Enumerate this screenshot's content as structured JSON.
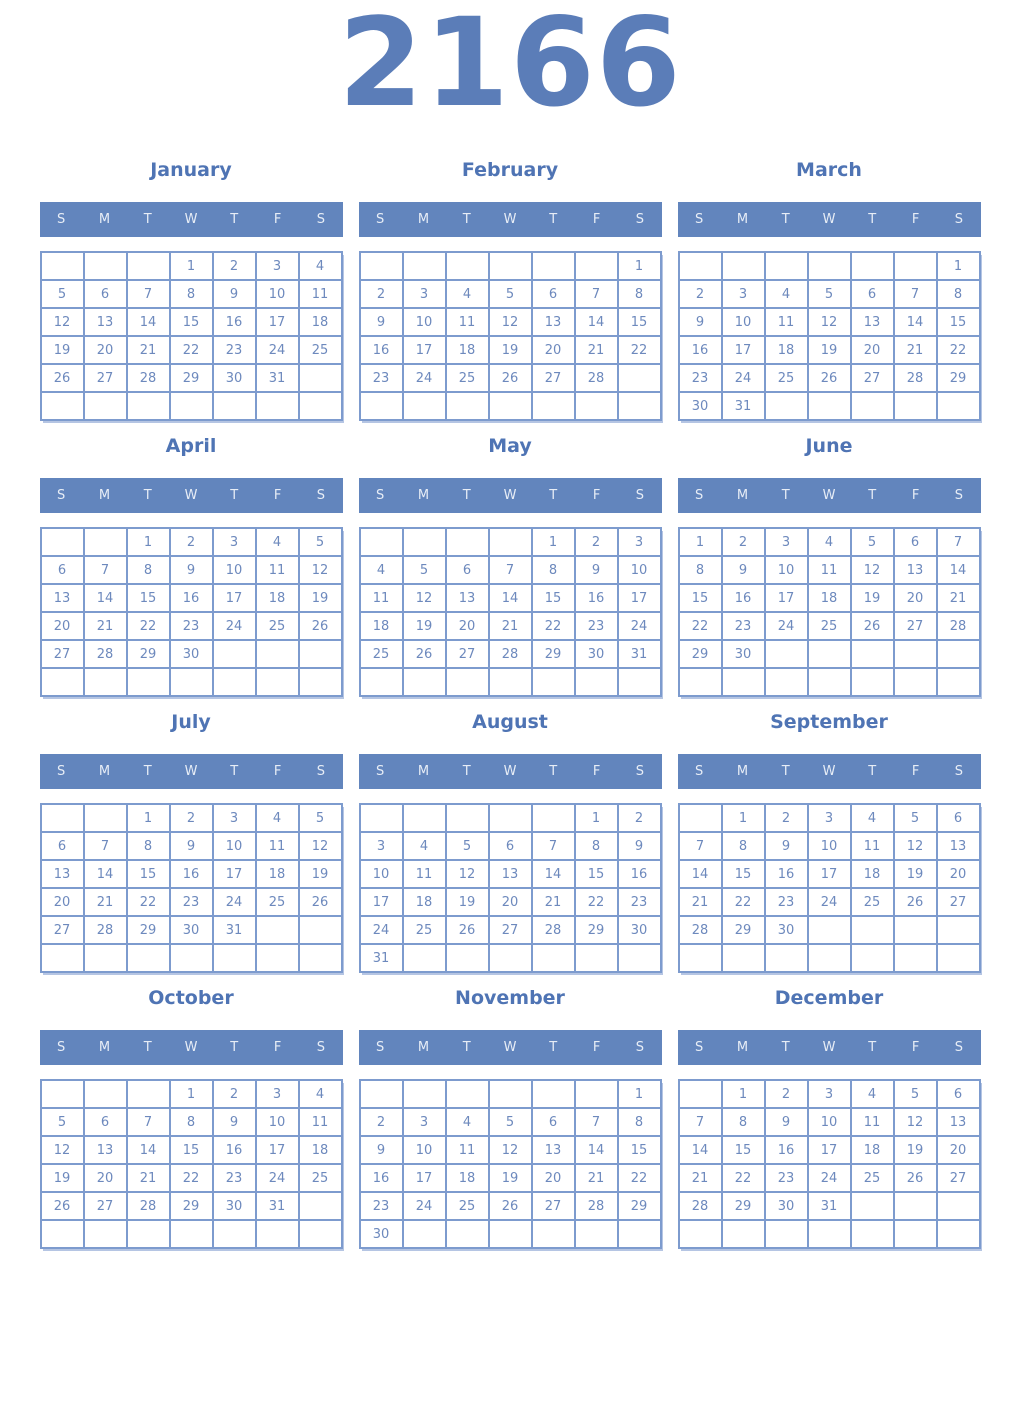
{
  "year": "2166",
  "weekday_headers": [
    "S",
    "M",
    "T",
    "W",
    "T",
    "F",
    "S"
  ],
  "colors": {
    "year_title": "#5b7db8",
    "month_title": "#4f74b4",
    "weekday_bar_background": "#6285bd",
    "weekday_letter": "#e7edf6",
    "cell_border": "#7d9bce",
    "day_number": "#6d89bd",
    "page_background": "#ffffff"
  },
  "months": [
    {
      "name": "January",
      "weeks": [
        [
          "",
          "",
          "",
          "1",
          "2",
          "3",
          "4"
        ],
        [
          "5",
          "6",
          "7",
          "8",
          "9",
          "10",
          "11"
        ],
        [
          "12",
          "13",
          "14",
          "15",
          "16",
          "17",
          "18"
        ],
        [
          "19",
          "20",
          "21",
          "22",
          "23",
          "24",
          "25"
        ],
        [
          "26",
          "27",
          "28",
          "29",
          "30",
          "31",
          ""
        ],
        [
          "",
          "",
          "",
          "",
          "",
          "",
          ""
        ]
      ]
    },
    {
      "name": "February",
      "weeks": [
        [
          "",
          "",
          "",
          "",
          "",
          "",
          "1"
        ],
        [
          "2",
          "3",
          "4",
          "5",
          "6",
          "7",
          "8"
        ],
        [
          "9",
          "10",
          "11",
          "12",
          "13",
          "14",
          "15"
        ],
        [
          "16",
          "17",
          "18",
          "19",
          "20",
          "21",
          "22"
        ],
        [
          "23",
          "24",
          "25",
          "26",
          "27",
          "28",
          ""
        ],
        [
          "",
          "",
          "",
          "",
          "",
          "",
          ""
        ]
      ]
    },
    {
      "name": "March",
      "weeks": [
        [
          "",
          "",
          "",
          "",
          "",
          "",
          "1"
        ],
        [
          "2",
          "3",
          "4",
          "5",
          "6",
          "7",
          "8"
        ],
        [
          "9",
          "10",
          "11",
          "12",
          "13",
          "14",
          "15"
        ],
        [
          "16",
          "17",
          "18",
          "19",
          "20",
          "21",
          "22"
        ],
        [
          "23",
          "24",
          "25",
          "26",
          "27",
          "28",
          "29"
        ],
        [
          "30",
          "31",
          "",
          "",
          "",
          "",
          ""
        ]
      ]
    },
    {
      "name": "April",
      "weeks": [
        [
          "",
          "",
          "1",
          "2",
          "3",
          "4",
          "5"
        ],
        [
          "6",
          "7",
          "8",
          "9",
          "10",
          "11",
          "12"
        ],
        [
          "13",
          "14",
          "15",
          "16",
          "17",
          "18",
          "19"
        ],
        [
          "20",
          "21",
          "22",
          "23",
          "24",
          "25",
          "26"
        ],
        [
          "27",
          "28",
          "29",
          "30",
          "",
          "",
          ""
        ],
        [
          "",
          "",
          "",
          "",
          "",
          "",
          ""
        ]
      ]
    },
    {
      "name": "May",
      "weeks": [
        [
          "",
          "",
          "",
          "",
          "1",
          "2",
          "3"
        ],
        [
          "4",
          "5",
          "6",
          "7",
          "8",
          "9",
          "10"
        ],
        [
          "11",
          "12",
          "13",
          "14",
          "15",
          "16",
          "17"
        ],
        [
          "18",
          "19",
          "20",
          "21",
          "22",
          "23",
          "24"
        ],
        [
          "25",
          "26",
          "27",
          "28",
          "29",
          "30",
          "31"
        ],
        [
          "",
          "",
          "",
          "",
          "",
          "",
          ""
        ]
      ]
    },
    {
      "name": "June",
      "weeks": [
        [
          "1",
          "2",
          "3",
          "4",
          "5",
          "6",
          "7"
        ],
        [
          "8",
          "9",
          "10",
          "11",
          "12",
          "13",
          "14"
        ],
        [
          "15",
          "16",
          "17",
          "18",
          "19",
          "20",
          "21"
        ],
        [
          "22",
          "23",
          "24",
          "25",
          "26",
          "27",
          "28"
        ],
        [
          "29",
          "30",
          "",
          "",
          "",
          "",
          ""
        ],
        [
          "",
          "",
          "",
          "",
          "",
          "",
          ""
        ]
      ]
    },
    {
      "name": "July",
      "weeks": [
        [
          "",
          "",
          "1",
          "2",
          "3",
          "4",
          "5"
        ],
        [
          "6",
          "7",
          "8",
          "9",
          "10",
          "11",
          "12"
        ],
        [
          "13",
          "14",
          "15",
          "16",
          "17",
          "18",
          "19"
        ],
        [
          "20",
          "21",
          "22",
          "23",
          "24",
          "25",
          "26"
        ],
        [
          "27",
          "28",
          "29",
          "30",
          "31",
          "",
          ""
        ],
        [
          "",
          "",
          "",
          "",
          "",
          "",
          ""
        ]
      ]
    },
    {
      "name": "August",
      "weeks": [
        [
          "",
          "",
          "",
          "",
          "",
          "1",
          "2"
        ],
        [
          "3",
          "4",
          "5",
          "6",
          "7",
          "8",
          "9"
        ],
        [
          "10",
          "11",
          "12",
          "13",
          "14",
          "15",
          "16"
        ],
        [
          "17",
          "18",
          "19",
          "20",
          "21",
          "22",
          "23"
        ],
        [
          "24",
          "25",
          "26",
          "27",
          "28",
          "29",
          "30"
        ],
        [
          "31",
          "",
          "",
          "",
          "",
          "",
          ""
        ]
      ]
    },
    {
      "name": "September",
      "weeks": [
        [
          "",
          "1",
          "2",
          "3",
          "4",
          "5",
          "6"
        ],
        [
          "7",
          "8",
          "9",
          "10",
          "11",
          "12",
          "13"
        ],
        [
          "14",
          "15",
          "16",
          "17",
          "18",
          "19",
          "20"
        ],
        [
          "21",
          "22",
          "23",
          "24",
          "25",
          "26",
          "27"
        ],
        [
          "28",
          "29",
          "30",
          "",
          "",
          "",
          ""
        ],
        [
          "",
          "",
          "",
          "",
          "",
          "",
          ""
        ]
      ]
    },
    {
      "name": "October",
      "weeks": [
        [
          "",
          "",
          "",
          "1",
          "2",
          "3",
          "4"
        ],
        [
          "5",
          "6",
          "7",
          "8",
          "9",
          "10",
          "11"
        ],
        [
          "12",
          "13",
          "14",
          "15",
          "16",
          "17",
          "18"
        ],
        [
          "19",
          "20",
          "21",
          "22",
          "23",
          "24",
          "25"
        ],
        [
          "26",
          "27",
          "28",
          "29",
          "30",
          "31",
          ""
        ],
        [
          "",
          "",
          "",
          "",
          "",
          "",
          ""
        ]
      ]
    },
    {
      "name": "November",
      "weeks": [
        [
          "",
          "",
          "",
          "",
          "",
          "",
          "1"
        ],
        [
          "2",
          "3",
          "4",
          "5",
          "6",
          "7",
          "8"
        ],
        [
          "9",
          "10",
          "11",
          "12",
          "13",
          "14",
          "15"
        ],
        [
          "16",
          "17",
          "18",
          "19",
          "20",
          "21",
          "22"
        ],
        [
          "23",
          "24",
          "25",
          "26",
          "27",
          "28",
          "29"
        ],
        [
          "30",
          "",
          "",
          "",
          "",
          "",
          ""
        ]
      ]
    },
    {
      "name": "December",
      "weeks": [
        [
          "",
          "1",
          "2",
          "3",
          "4",
          "5",
          "6"
        ],
        [
          "7",
          "8",
          "9",
          "10",
          "11",
          "12",
          "13"
        ],
        [
          "14",
          "15",
          "16",
          "17",
          "18",
          "19",
          "20"
        ],
        [
          "21",
          "22",
          "23",
          "24",
          "25",
          "26",
          "27"
        ],
        [
          "28",
          "29",
          "30",
          "31",
          "",
          "",
          ""
        ],
        [
          "",
          "",
          "",
          "",
          "",
          "",
          ""
        ]
      ]
    }
  ]
}
